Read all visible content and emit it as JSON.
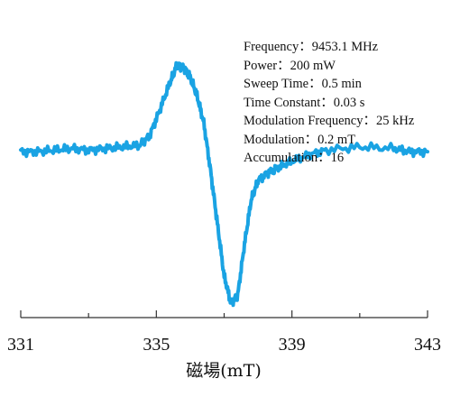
{
  "parameters": [
    {
      "name": "Frequency",
      "value": "9453.1 MHz"
    },
    {
      "name": "Power",
      "value": "200 mW"
    },
    {
      "name": "Sweep Time",
      "value": "0.5 min"
    },
    {
      "name": "Time Constant",
      "value": "0.03 s"
    },
    {
      "name": "Modulation Frequency",
      "value": "25 kHz"
    },
    {
      "name": "Modulation",
      "value": "0.2 mT"
    },
    {
      "name": "Accumulation",
      "value": "16"
    }
  ],
  "separator": "：",
  "colors": {
    "trace": "#1aa3e3",
    "axis": "#333333",
    "text": "#111111"
  },
  "chart_data": {
    "type": "line",
    "xlabel": "磁場(mT)",
    "ylabel": "",
    "title": "",
    "xlim": [
      331,
      343
    ],
    "xticks": [
      331,
      335,
      339,
      343
    ],
    "xtick_labels": [
      "331",
      "335",
      "339",
      "343"
    ],
    "minor_ticks": [
      333,
      337,
      341
    ],
    "y_axis_shown": false,
    "ylim": [
      -1.0,
      0.6
    ],
    "grid": false,
    "series": [
      {
        "x": [
          331.0,
          331.5,
          332.0,
          332.5,
          333.0,
          333.5,
          334.0,
          334.5,
          334.8,
          335.1,
          335.4,
          335.6,
          335.8,
          336.0,
          336.2,
          336.4,
          336.6,
          336.8,
          337.0,
          337.2,
          337.4,
          337.6,
          337.8,
          338.0,
          338.3,
          338.6,
          339.0,
          339.5,
          340.0,
          341.0,
          342.0,
          342.5,
          343.0
        ],
        "y": [
          0.0,
          0.0,
          0.01,
          0.02,
          0.01,
          0.02,
          0.03,
          0.04,
          0.1,
          0.26,
          0.43,
          0.54,
          0.53,
          0.47,
          0.35,
          0.18,
          -0.12,
          -0.45,
          -0.78,
          -0.95,
          -0.9,
          -0.58,
          -0.3,
          -0.18,
          -0.13,
          -0.1,
          -0.06,
          -0.02,
          0.01,
          0.03,
          0.02,
          0.0,
          0.0
        ]
      }
    ]
  }
}
